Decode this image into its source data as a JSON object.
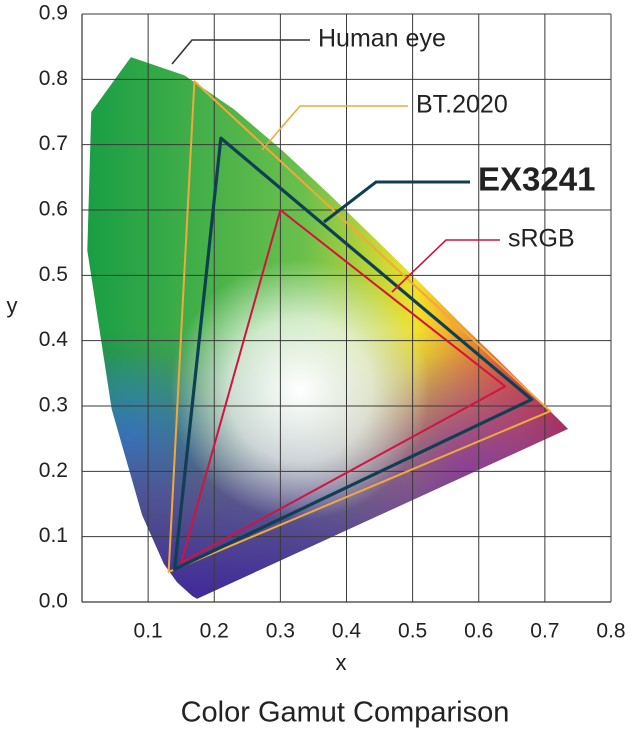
{
  "chart_data": {
    "type": "line",
    "title": "Color Gamut Comparison",
    "x_label": "x",
    "y_label": "y",
    "xlim": [
      0,
      0.8
    ],
    "ylim": [
      0,
      0.9
    ],
    "xticks": [
      0.1,
      0.2,
      0.3,
      0.4,
      0.5,
      0.6,
      0.7,
      0.8
    ],
    "yticks": [
      {
        "value": 0,
        "label": "0.0"
      },
      0.1,
      0.2,
      0.3,
      0.4,
      0.5,
      0.6,
      0.7,
      0.8,
      0.9
    ],
    "grid": true,
    "closed": true,
    "series": [
      {
        "name": "Human eye",
        "color": "#1a9e45",
        "x": [
          0.174,
          0.167,
          0.144,
          0.124,
          0.091,
          0.045,
          0.008,
          0.014,
          0.074,
          0.155,
          0.23,
          0.302,
          0.373,
          0.444,
          0.513,
          0.575,
          0.627,
          0.666,
          0.735
        ],
        "values": [
          0.005,
          0.009,
          0.03,
          0.058,
          0.133,
          0.295,
          0.538,
          0.75,
          0.834,
          0.806,
          0.754,
          0.692,
          0.625,
          0.555,
          0.487,
          0.424,
          0.373,
          0.334,
          0.265
        ]
      },
      {
        "name": "BT.2020",
        "color": "#f2a93b",
        "x": [
          0.708,
          0.17,
          0.131
        ],
        "values": [
          0.292,
          0.797,
          0.046
        ]
      },
      {
        "name": "EX3241",
        "color": "#0f3f52",
        "x": [
          0.68,
          0.21,
          0.14
        ],
        "values": [
          0.31,
          0.71,
          0.05
        ]
      },
      {
        "name": "sRGB",
        "color": "#d4123e",
        "x": [
          0.64,
          0.3,
          0.15
        ],
        "values": [
          0.33,
          0.6,
          0.06
        ]
      }
    ]
  }
}
